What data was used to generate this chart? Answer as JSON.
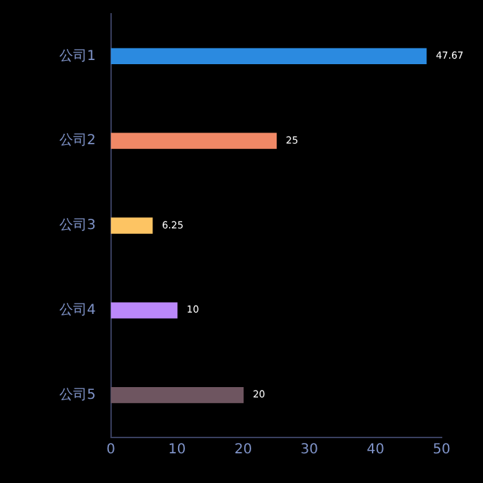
{
  "chart_data": {
    "type": "bar",
    "orientation": "horizontal",
    "categories": [
      "公司1",
      "公司2",
      "公司3",
      "公司4",
      "公司5"
    ],
    "values": [
      47.67,
      25,
      6.25,
      10,
      20
    ],
    "colors": [
      "#2b8ae0",
      "#f08866",
      "#fdc463",
      "#bb88fa",
      "#6e5560"
    ],
    "xlim": [
      0,
      50
    ],
    "xticks": [
      0,
      10,
      20,
      30,
      40,
      50
    ],
    "grid": false,
    "legend": false,
    "data_labels": true
  }
}
